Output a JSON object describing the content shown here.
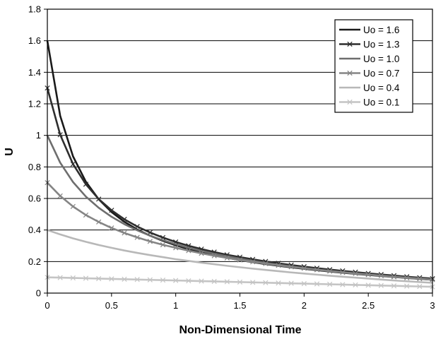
{
  "chart_data": {
    "type": "line",
    "title": "",
    "xlabel": "Non-Dimensional Time",
    "ylabel": "U",
    "xlim": [
      0,
      3
    ],
    "ylim": [
      0,
      1.8
    ],
    "x_ticks": [
      "0",
      "0.5",
      "1",
      "1.5",
      "2",
      "2.5",
      "3"
    ],
    "y_ticks": [
      "0",
      "0.2",
      "0.4",
      "0.6",
      "0.8",
      "1",
      "1.2",
      "1.4",
      "1.6",
      "1.8"
    ],
    "grid": "horizontal",
    "legend_position": "top-right",
    "x": [
      0,
      0.1,
      0.2,
      0.3,
      0.4,
      0.5,
      0.6,
      0.7,
      0.8,
      0.9,
      1.0,
      1.1,
      1.2,
      1.3,
      1.4,
      1.5,
      1.6,
      1.7,
      1.8,
      1.9,
      2.0,
      2.1,
      2.2,
      2.3,
      2.4,
      2.5,
      2.6,
      2.7,
      2.8,
      2.9,
      3.0
    ],
    "series": [
      {
        "name": "Uo = 1.6",
        "color": "#1a1a1a",
        "marker": "none",
        "values": [
          1.6,
          1.124,
          0.867,
          0.706,
          0.595,
          0.514,
          0.452,
          0.403,
          0.364,
          0.331,
          0.303,
          0.279,
          0.258,
          0.24,
          0.224,
          0.209,
          0.196,
          0.184,
          0.173,
          0.163,
          0.154,
          0.145,
          0.137,
          0.129,
          0.122,
          0.115,
          0.108,
          0.102,
          0.096,
          0.09,
          0.085
        ]
      },
      {
        "name": "Uo = 1.3",
        "color": "#2e2e2e",
        "marker": "x",
        "values": [
          1.3,
          1.004,
          0.818,
          0.69,
          0.596,
          0.525,
          0.468,
          0.422,
          0.384,
          0.352,
          0.324,
          0.3,
          0.279,
          0.26,
          0.243,
          0.228,
          0.214,
          0.201,
          0.189,
          0.178,
          0.168,
          0.158,
          0.149,
          0.141,
          0.133,
          0.125,
          0.118,
          0.111,
          0.104,
          0.098,
          0.092
        ]
      },
      {
        "name": "Uo = 1.0",
        "color": "#6e6e6e",
        "marker": "none",
        "values": [
          1.0,
          0.827,
          0.704,
          0.612,
          0.541,
          0.484,
          0.437,
          0.398,
          0.364,
          0.335,
          0.31,
          0.287,
          0.267,
          0.249,
          0.233,
          0.218,
          0.204,
          0.191,
          0.18,
          0.169,
          0.159,
          0.15,
          0.141,
          0.133,
          0.125,
          0.118,
          0.111,
          0.104,
          0.098,
          0.092,
          0.086
        ]
      },
      {
        "name": "Uo = 0.7",
        "color": "#858585",
        "marker": "x",
        "values": [
          0.7,
          0.616,
          0.549,
          0.495,
          0.451,
          0.413,
          0.381,
          0.353,
          0.328,
          0.306,
          0.287,
          0.269,
          0.252,
          0.237,
          0.223,
          0.21,
          0.198,
          0.187,
          0.176,
          0.166,
          0.157,
          0.148,
          0.139,
          0.131,
          0.124,
          0.117,
          0.11,
          0.103,
          0.097,
          0.091,
          0.085
        ]
      },
      {
        "name": "Uo = 0.4",
        "color": "#b8b8b8",
        "marker": "none",
        "values": [
          0.4,
          0.372,
          0.347,
          0.325,
          0.305,
          0.287,
          0.27,
          0.255,
          0.241,
          0.228,
          0.215,
          0.204,
          0.193,
          0.183,
          0.173,
          0.164,
          0.155,
          0.147,
          0.139,
          0.131,
          0.124,
          0.117,
          0.11,
          0.104,
          0.098,
          0.092,
          0.086,
          0.08,
          0.075,
          0.07,
          0.065
        ]
      },
      {
        "name": "Uo = 0.1",
        "color": "#c4c4c4",
        "marker": "x",
        "values": [
          0.1,
          0.098,
          0.096,
          0.094,
          0.092,
          0.09,
          0.088,
          0.086,
          0.084,
          0.082,
          0.08,
          0.078,
          0.076,
          0.074,
          0.072,
          0.07,
          0.068,
          0.066,
          0.064,
          0.062,
          0.06,
          0.058,
          0.056,
          0.054,
          0.052,
          0.05,
          0.048,
          0.046,
          0.044,
          0.042,
          0.04
        ]
      }
    ]
  }
}
